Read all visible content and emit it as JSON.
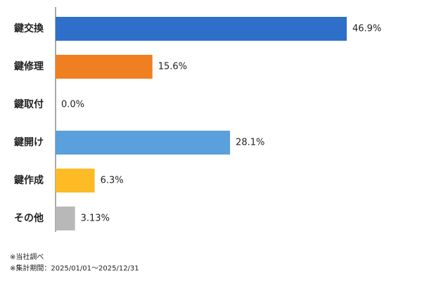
{
  "chart_data": {
    "type": "bar",
    "orientation": "horizontal",
    "categories": [
      "鍵交換",
      "鍵修理",
      "鍵取付",
      "鍵開け",
      "鍵作成",
      "その他"
    ],
    "values": [
      46.9,
      15.6,
      0.0,
      28.1,
      6.3,
      3.13
    ],
    "value_labels": [
      "46.9%",
      "15.6%",
      "0.0%",
      "28.1%",
      "6.3%",
      "3.13%"
    ],
    "colors": [
      "#2e6fca",
      "#f07f22",
      "#a6a6a6",
      "#5aa0dc",
      "#fdbb26",
      "#b8b8b8"
    ],
    "notes": [
      "※当社調べ",
      "※集計期間：2025/01/01～2025/12/31"
    ]
  }
}
